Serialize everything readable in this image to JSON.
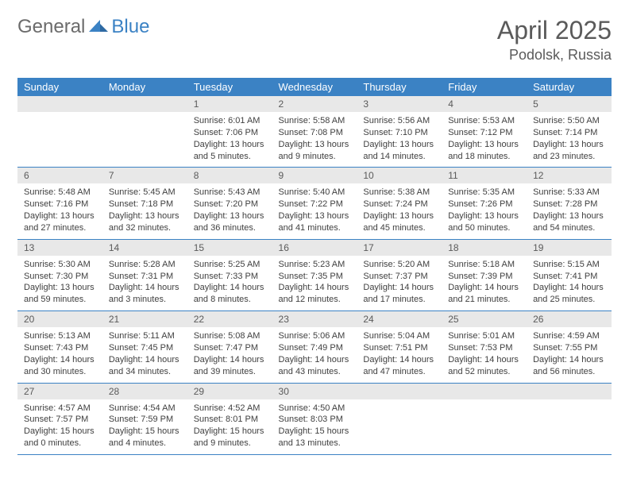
{
  "brand": {
    "part1": "General",
    "part2": "Blue"
  },
  "title": "April 2025",
  "location": "Podolsk, Russia",
  "colors": {
    "accent": "#3b82c4",
    "header_bg": "#3b82c4",
    "daynum_bg": "#e8e8e8",
    "text": "#404040"
  },
  "weekdays": [
    "Sunday",
    "Monday",
    "Tuesday",
    "Wednesday",
    "Thursday",
    "Friday",
    "Saturday"
  ],
  "grid": [
    [
      {
        "empty": true
      },
      {
        "empty": true
      },
      {
        "day": 1,
        "sunrise": "6:01 AM",
        "sunset": "7:06 PM",
        "daylight": "13 hours and 5 minutes."
      },
      {
        "day": 2,
        "sunrise": "5:58 AM",
        "sunset": "7:08 PM",
        "daylight": "13 hours and 9 minutes."
      },
      {
        "day": 3,
        "sunrise": "5:56 AM",
        "sunset": "7:10 PM",
        "daylight": "13 hours and 14 minutes."
      },
      {
        "day": 4,
        "sunrise": "5:53 AM",
        "sunset": "7:12 PM",
        "daylight": "13 hours and 18 minutes."
      },
      {
        "day": 5,
        "sunrise": "5:50 AM",
        "sunset": "7:14 PM",
        "daylight": "13 hours and 23 minutes."
      }
    ],
    [
      {
        "day": 6,
        "sunrise": "5:48 AM",
        "sunset": "7:16 PM",
        "daylight": "13 hours and 27 minutes."
      },
      {
        "day": 7,
        "sunrise": "5:45 AM",
        "sunset": "7:18 PM",
        "daylight": "13 hours and 32 minutes."
      },
      {
        "day": 8,
        "sunrise": "5:43 AM",
        "sunset": "7:20 PM",
        "daylight": "13 hours and 36 minutes."
      },
      {
        "day": 9,
        "sunrise": "5:40 AM",
        "sunset": "7:22 PM",
        "daylight": "13 hours and 41 minutes."
      },
      {
        "day": 10,
        "sunrise": "5:38 AM",
        "sunset": "7:24 PM",
        "daylight": "13 hours and 45 minutes."
      },
      {
        "day": 11,
        "sunrise": "5:35 AM",
        "sunset": "7:26 PM",
        "daylight": "13 hours and 50 minutes."
      },
      {
        "day": 12,
        "sunrise": "5:33 AM",
        "sunset": "7:28 PM",
        "daylight": "13 hours and 54 minutes."
      }
    ],
    [
      {
        "day": 13,
        "sunrise": "5:30 AM",
        "sunset": "7:30 PM",
        "daylight": "13 hours and 59 minutes."
      },
      {
        "day": 14,
        "sunrise": "5:28 AM",
        "sunset": "7:31 PM",
        "daylight": "14 hours and 3 minutes."
      },
      {
        "day": 15,
        "sunrise": "5:25 AM",
        "sunset": "7:33 PM",
        "daylight": "14 hours and 8 minutes."
      },
      {
        "day": 16,
        "sunrise": "5:23 AM",
        "sunset": "7:35 PM",
        "daylight": "14 hours and 12 minutes."
      },
      {
        "day": 17,
        "sunrise": "5:20 AM",
        "sunset": "7:37 PM",
        "daylight": "14 hours and 17 minutes."
      },
      {
        "day": 18,
        "sunrise": "5:18 AM",
        "sunset": "7:39 PM",
        "daylight": "14 hours and 21 minutes."
      },
      {
        "day": 19,
        "sunrise": "5:15 AM",
        "sunset": "7:41 PM",
        "daylight": "14 hours and 25 minutes."
      }
    ],
    [
      {
        "day": 20,
        "sunrise": "5:13 AM",
        "sunset": "7:43 PM",
        "daylight": "14 hours and 30 minutes."
      },
      {
        "day": 21,
        "sunrise": "5:11 AM",
        "sunset": "7:45 PM",
        "daylight": "14 hours and 34 minutes."
      },
      {
        "day": 22,
        "sunrise": "5:08 AM",
        "sunset": "7:47 PM",
        "daylight": "14 hours and 39 minutes."
      },
      {
        "day": 23,
        "sunrise": "5:06 AM",
        "sunset": "7:49 PM",
        "daylight": "14 hours and 43 minutes."
      },
      {
        "day": 24,
        "sunrise": "5:04 AM",
        "sunset": "7:51 PM",
        "daylight": "14 hours and 47 minutes."
      },
      {
        "day": 25,
        "sunrise": "5:01 AM",
        "sunset": "7:53 PM",
        "daylight": "14 hours and 52 minutes."
      },
      {
        "day": 26,
        "sunrise": "4:59 AM",
        "sunset": "7:55 PM",
        "daylight": "14 hours and 56 minutes."
      }
    ],
    [
      {
        "day": 27,
        "sunrise": "4:57 AM",
        "sunset": "7:57 PM",
        "daylight": "15 hours and 0 minutes."
      },
      {
        "day": 28,
        "sunrise": "4:54 AM",
        "sunset": "7:59 PM",
        "daylight": "15 hours and 4 minutes."
      },
      {
        "day": 29,
        "sunrise": "4:52 AM",
        "sunset": "8:01 PM",
        "daylight": "15 hours and 9 minutes."
      },
      {
        "day": 30,
        "sunrise": "4:50 AM",
        "sunset": "8:03 PM",
        "daylight": "15 hours and 13 minutes."
      },
      {
        "empty": true
      },
      {
        "empty": true
      },
      {
        "empty": true
      }
    ]
  ],
  "labels": {
    "sunrise": "Sunrise:",
    "sunset": "Sunset:",
    "daylight": "Daylight:"
  }
}
